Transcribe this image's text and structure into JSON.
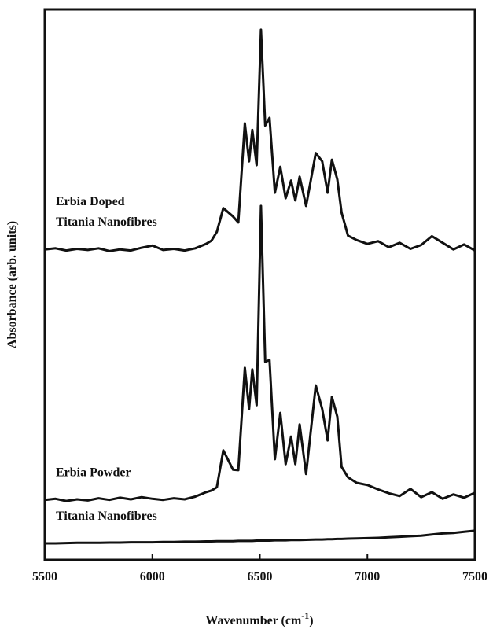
{
  "chart_data": {
    "type": "line",
    "xlabel": [
      "Wavenumber (cm",
      "-1",
      ")"
    ],
    "ylabel": "Absorbance (arb. units)",
    "xlim": [
      5500,
      7500
    ],
    "xticks": [
      5500,
      6000,
      6500,
      7000,
      7500
    ],
    "ylim": [
      0,
      100
    ],
    "x": [
      5500,
      5550,
      5600,
      5650,
      5700,
      5750,
      5800,
      5850,
      5900,
      5950,
      6000,
      6050,
      6100,
      6150,
      6200,
      6250,
      6275,
      6300,
      6330,
      6375,
      6400,
      6430,
      6450,
      6465,
      6485,
      6505,
      6525,
      6545,
      6570,
      6595,
      6620,
      6645,
      6665,
      6685,
      6715,
      6760,
      6790,
      6815,
      6835,
      6860,
      6880,
      6910,
      6950,
      7000,
      7050,
      7100,
      7150,
      7200,
      7250,
      7300,
      7350,
      7400,
      7450,
      7500
    ],
    "series": [
      {
        "label": [
          "Erbia Doped",
          "Titania Nanofibres"
        ],
        "color": "#111111",
        "values": [
          56.4,
          56.6,
          56.2,
          56.5,
          56.3,
          56.6,
          56.1,
          56.4,
          56.2,
          56.7,
          57.1,
          56.3,
          56.5,
          56.2,
          56.6,
          57.4,
          58,
          59.6,
          63.9,
          62.4,
          61.3,
          79.3,
          72.4,
          78.1,
          71.7,
          96.3,
          78.9,
          80.3,
          66.7,
          71.4,
          65.7,
          68.9,
          65.3,
          69.6,
          64.3,
          73.9,
          72.4,
          66.7,
          72.7,
          69.1,
          63.1,
          58.9,
          58.1,
          57.4,
          57.9,
          56.8,
          57.6,
          56.5,
          57.2,
          58.8,
          57.6,
          56.4,
          57.3,
          56.2
        ]
      },
      {
        "label": [
          "Erbia Powder"
        ],
        "color": "#111111",
        "values": [
          10.9,
          11.1,
          10.7,
          11,
          10.8,
          11.2,
          10.9,
          11.3,
          11,
          11.4,
          11.1,
          10.9,
          11.2,
          11,
          11.5,
          12.3,
          12.6,
          13.2,
          19.9,
          16.4,
          16.3,
          34.9,
          27.4,
          34.6,
          28.1,
          64.3,
          36,
          36.3,
          18.3,
          26.7,
          17.4,
          22.4,
          17.4,
          24.6,
          15.6,
          31.7,
          27.4,
          21.7,
          29.6,
          26,
          16.9,
          15,
          14,
          13.6,
          12.8,
          12.1,
          11.6,
          12.9,
          11.4,
          12.3,
          11.1,
          11.9,
          11.3,
          12.2
        ]
      },
      {
        "label": [
          "Titania Nanofibres"
        ],
        "color": "#111111",
        "values": [
          3.0,
          3.0,
          3.05,
          3.1,
          3.1,
          3.1,
          3.15,
          3.15,
          3.2,
          3.2,
          3.2,
          3.25,
          3.25,
          3.3,
          3.3,
          3.35,
          3.35,
          3.4,
          3.4,
          3.4,
          3.45,
          3.45,
          3.45,
          3.45,
          3.5,
          3.5,
          3.5,
          3.5,
          3.55,
          3.55,
          3.55,
          3.6,
          3.6,
          3.6,
          3.65,
          3.7,
          3.7,
          3.75,
          3.75,
          3.8,
          3.8,
          3.85,
          3.9,
          3.95,
          4.0,
          4.1,
          4.2,
          4.3,
          4.4,
          4.6,
          4.8,
          4.9,
          5.1,
          5.3
        ]
      }
    ]
  }
}
